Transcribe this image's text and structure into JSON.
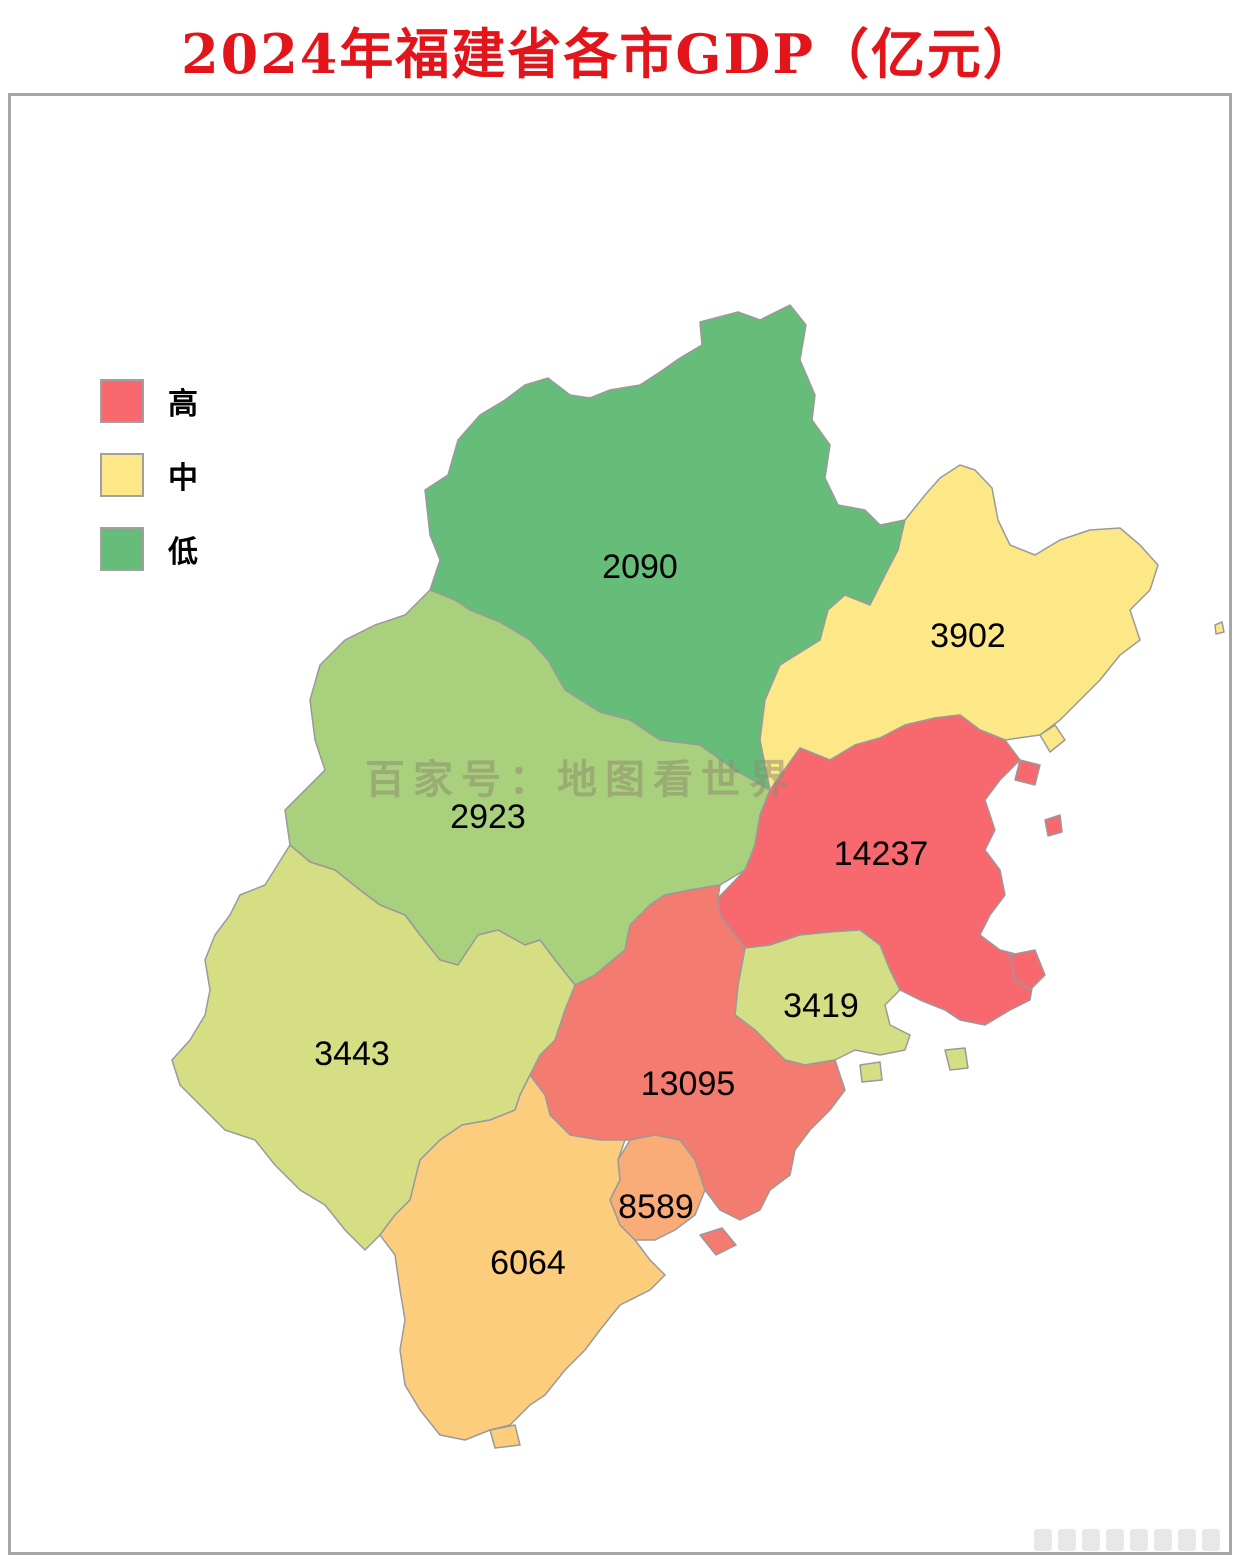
{
  "title": "2024年福建省各市GDP（亿元）",
  "legend": [
    {
      "label": "高",
      "color": "#f7696e"
    },
    {
      "label": "中",
      "color": "#fde888"
    },
    {
      "label": "低",
      "color": "#66bd7a"
    }
  ],
  "watermark": "百家号：地图看世界",
  "regions": [
    {
      "id": "nanping",
      "gdp": "2090",
      "color": "#66bd7a"
    },
    {
      "id": "ningde",
      "gdp": "3902",
      "color": "#fde888"
    },
    {
      "id": "sanming",
      "gdp": "2923",
      "color": "#a8d07d"
    },
    {
      "id": "fuzhou",
      "gdp": "14237",
      "color": "#f7696e"
    },
    {
      "id": "quanzhou",
      "gdp": "13095",
      "color": "#f47b6f"
    },
    {
      "id": "putian",
      "gdp": "3419",
      "color": "#d4de85"
    },
    {
      "id": "longyan",
      "gdp": "3443",
      "color": "#d6de84"
    },
    {
      "id": "zhangzhou",
      "gdp": "6064",
      "color": "#fdcd7e"
    },
    {
      "id": "xiamen",
      "gdp": "8589",
      "color": "#f9ab78"
    }
  ]
}
